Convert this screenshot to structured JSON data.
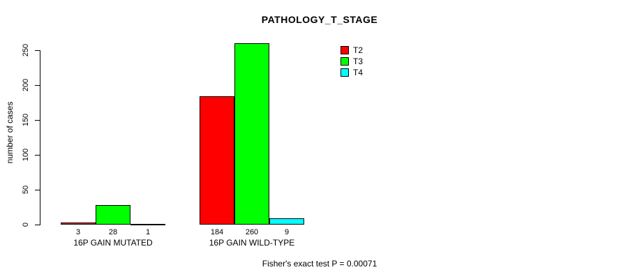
{
  "chart_data": {
    "type": "bar",
    "title": "PATHOLOGY_T_STAGE",
    "ylabel": "number of cases",
    "xlabel": "",
    "ylim": [
      0,
      250
    ],
    "yticks": [
      0,
      50,
      100,
      150,
      200,
      250
    ],
    "categories": [
      "16P GAIN MUTATED",
      "16P GAIN WILD-TYPE"
    ],
    "series": [
      {
        "name": "T2",
        "color": "#ff0000",
        "values": [
          3,
          184
        ]
      },
      {
        "name": "T3",
        "color": "#00ff00",
        "values": [
          28,
          260
        ]
      },
      {
        "name": "T4",
        "color": "#00ffff",
        "values": [
          1,
          9
        ]
      }
    ],
    "bar_value_labels_shown": true,
    "grid": false,
    "legend_position": "top-right",
    "annotation": "Fisher's exact test P = 0.00071"
  }
}
